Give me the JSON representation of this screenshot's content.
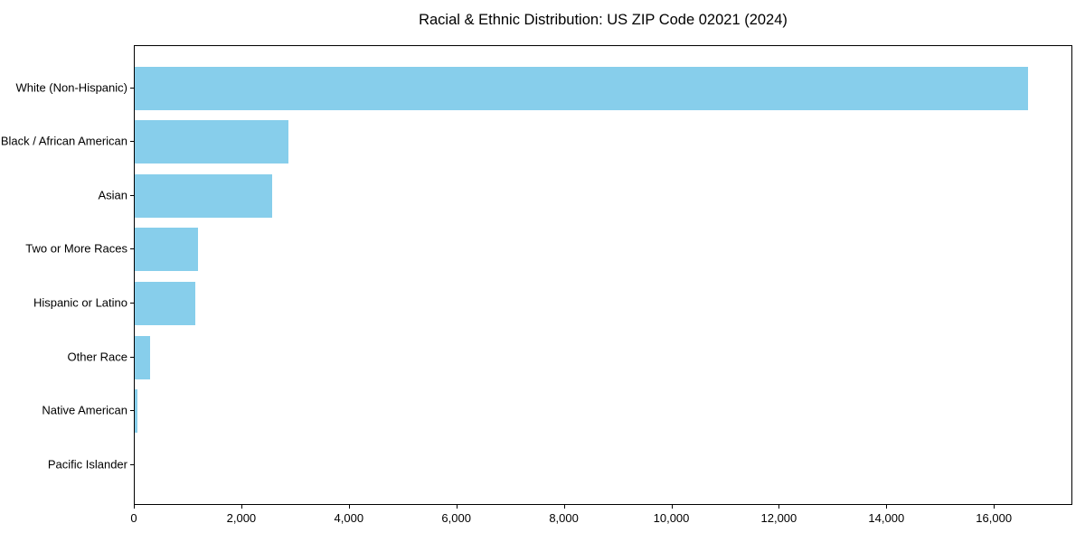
{
  "chart_data": {
    "type": "bar",
    "orientation": "horizontal",
    "title": "Racial & Ethnic Distribution: US ZIP Code 02021 (2024)",
    "categories": [
      "White (Non-Hispanic)",
      "Black / African American",
      "Asian",
      "Two or More Races",
      "Hispanic or Latino",
      "Other Race",
      "Native American",
      "Pacific Islander"
    ],
    "values": [
      16620,
      2860,
      2560,
      1185,
      1120,
      290,
      50,
      0
    ],
    "xlabel": "",
    "ylabel": "",
    "xlim": [
      0,
      17460
    ],
    "x_ticks": [
      0,
      2000,
      4000,
      6000,
      8000,
      10000,
      12000,
      14000,
      16000
    ],
    "x_tick_labels": [
      "0",
      "2,000",
      "4,000",
      "6,000",
      "8,000",
      "10,000",
      "12,000",
      "14,000",
      "16,000"
    ],
    "bar_color": "#87CEEB",
    "grid": false,
    "legend": null
  }
}
